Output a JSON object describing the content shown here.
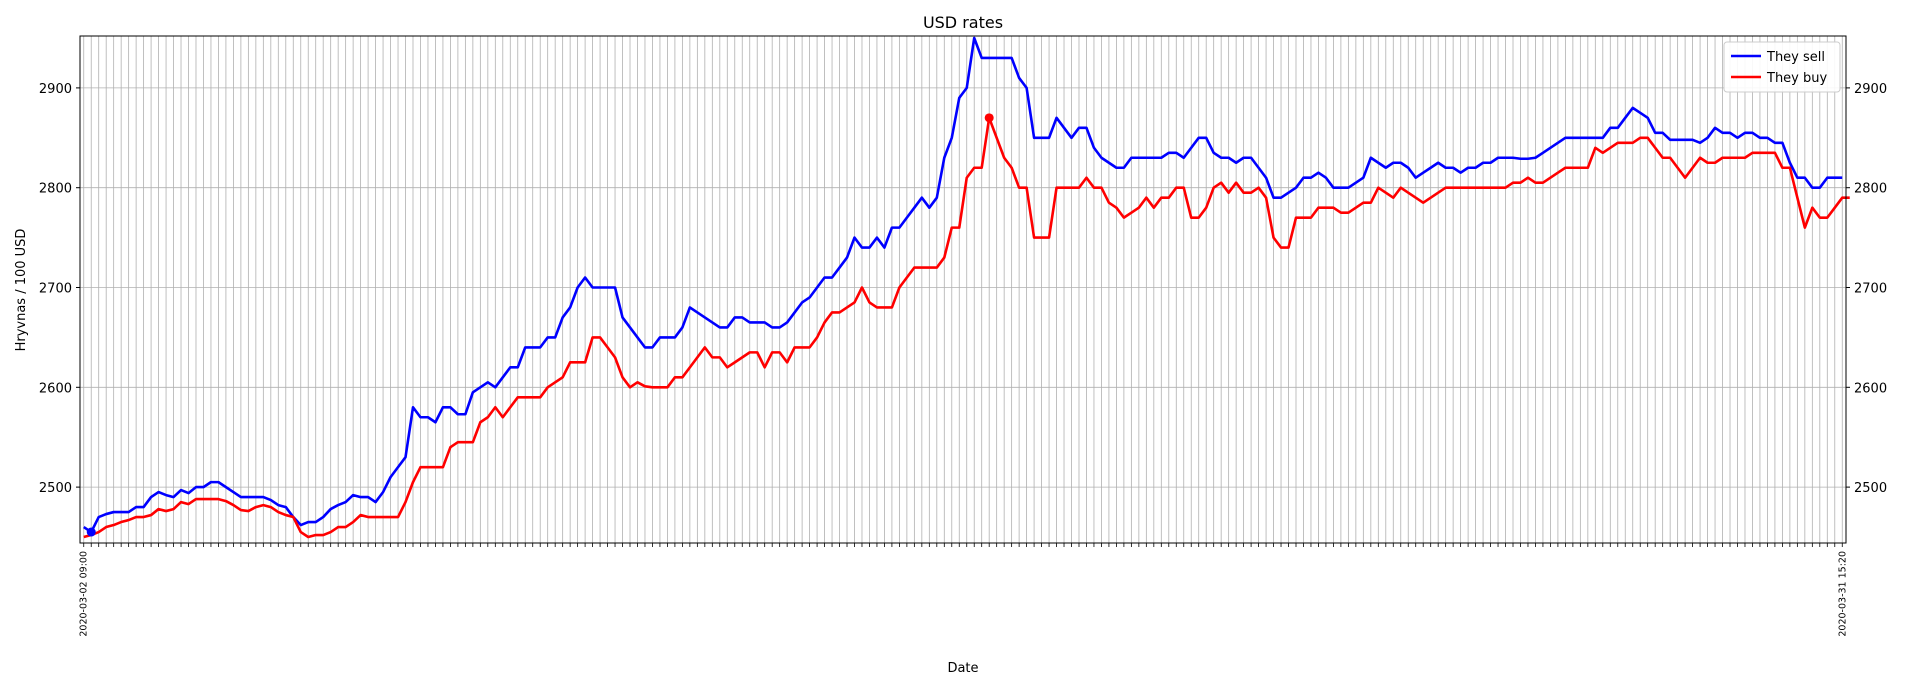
{
  "chart_data": {
    "type": "line",
    "title": "USD rates",
    "xlabel": "Date",
    "ylabel": "Hryvnas / 100 USD",
    "ylim": [
      2444,
      2952
    ],
    "yticks": [
      2500,
      2600,
      2700,
      2800,
      2900
    ],
    "grid": true,
    "legend_position": "top-right",
    "date_range": [
      "2020-03-02 09:00",
      "2020-03-31 15:20"
    ],
    "x_tick_labels_visible": [
      "2020-03-02 09:00",
      "2020-03-31 15:20"
    ],
    "series": [
      {
        "name": "They sell",
        "color": "#0000ff",
        "values": [
          2460,
          2455,
          2470,
          2473,
          2475,
          2475,
          2475,
          2480,
          2480,
          2490,
          2495,
          2492,
          2490,
          2497,
          2494,
          2500,
          2500,
          2505,
          2505,
          2500,
          2495,
          2490,
          2490,
          2490,
          2490,
          2487,
          2482,
          2480,
          2470,
          2462,
          2465,
          2465,
          2470,
          2478,
          2482,
          2485,
          2492,
          2490,
          2490,
          2485,
          2495,
          2510,
          2520,
          2530,
          2580,
          2570,
          2570,
          2565,
          2580,
          2580,
          2573,
          2573,
          2595,
          2600,
          2605,
          2600,
          2610,
          2620,
          2620,
          2640,
          2640,
          2640,
          2650,
          2650,
          2670,
          2680,
          2700,
          2710,
          2700,
          2700,
          2700,
          2700,
          2670,
          2660,
          2650,
          2640,
          2640,
          2650,
          2650,
          2650,
          2660,
          2680,
          2675,
          2670,
          2665,
          2660,
          2660,
          2670,
          2670,
          2665,
          2665,
          2665,
          2660,
          2660,
          2665,
          2675,
          2685,
          2690,
          2700,
          2710,
          2710,
          2720,
          2730,
          2750,
          2740,
          2740,
          2750,
          2740,
          2760,
          2760,
          2770,
          2780,
          2790,
          2780,
          2790,
          2830,
          2850,
          2890,
          2900,
          2950,
          2930,
          2930,
          2930,
          2930,
          2930,
          2910,
          2900,
          2850,
          2850,
          2850,
          2870,
          2860,
          2850,
          2860,
          2860,
          2840,
          2830,
          2825,
          2820,
          2820,
          2830,
          2830,
          2830,
          2830,
          2830,
          2835,
          2835,
          2830,
          2840,
          2850,
          2850,
          2835,
          2830,
          2830,
          2825,
          2830,
          2830,
          2820,
          2810,
          2790,
          2790,
          2795,
          2800,
          2810,
          2810,
          2815,
          2810,
          2800,
          2800,
          2800,
          2805,
          2810,
          2830,
          2825,
          2820,
          2825,
          2825,
          2820,
          2810,
          2815,
          2820,
          2825,
          2820,
          2820,
          2815,
          2820,
          2820,
          2825,
          2825,
          2830,
          2830,
          2830,
          2829,
          2829,
          2830,
          2835,
          2840,
          2845,
          2850,
          2850,
          2850,
          2850,
          2850,
          2850,
          2860,
          2860,
          2870,
          2880,
          2875,
          2870,
          2855,
          2855,
          2848,
          2848,
          2848,
          2848,
          2845,
          2850,
          2860,
          2855,
          2855,
          2850,
          2855,
          2855,
          2850,
          2850,
          2845,
          2845,
          2825,
          2810,
          2810,
          2800,
          2800,
          2810,
          2810,
          2810
        ]
      },
      {
        "name": "They buy",
        "color": "#ff0000",
        "values": [
          2450,
          2452,
          2455,
          2460,
          2462,
          2465,
          2467,
          2470,
          2470,
          2472,
          2478,
          2476,
          2478,
          2485,
          2483,
          2488,
          2488,
          2488,
          2488,
          2486,
          2482,
          2477,
          2476,
          2480,
          2482,
          2480,
          2475,
          2472,
          2470,
          2455,
          2450,
          2452,
          2452,
          2455,
          2460,
          2460,
          2465,
          2472,
          2470,
          2470,
          2470,
          2470,
          2470,
          2485,
          2505,
          2520,
          2520,
          2520,
          2520,
          2540,
          2545,
          2545,
          2545,
          2565,
          2570,
          2580,
          2570,
          2580,
          2590,
          2590,
          2590,
          2590,
          2600,
          2605,
          2610,
          2625,
          2625,
          2625,
          2650,
          2650,
          2640,
          2630,
          2610,
          2600,
          2605,
          2601,
          2600,
          2600,
          2600,
          2610,
          2610,
          2620,
          2630,
          2640,
          2630,
          2630,
          2620,
          2625,
          2630,
          2635,
          2635,
          2620,
          2635,
          2635,
          2625,
          2640,
          2640,
          2640,
          2650,
          2665,
          2675,
          2675,
          2680,
          2685,
          2700,
          2685,
          2680,
          2680,
          2680,
          2700,
          2710,
          2720,
          2720,
          2720,
          2720,
          2730,
          2760,
          2760,
          2810,
          2820,
          2820,
          2870,
          2850,
          2830,
          2820,
          2800,
          2800,
          2750,
          2750,
          2750,
          2800,
          2800,
          2800,
          2800,
          2810,
          2800,
          2800,
          2785,
          2780,
          2770,
          2775,
          2780,
          2790,
          2780,
          2790,
          2790,
          2800,
          2800,
          2770,
          2770,
          2780,
          2800,
          2805,
          2795,
          2805,
          2795,
          2795,
          2800,
          2790,
          2750,
          2740,
          2740,
          2770,
          2770,
          2770,
          2780,
          2780,
          2780,
          2775,
          2775,
          2780,
          2785,
          2785,
          2800,
          2795,
          2790,
          2800,
          2795,
          2790,
          2785,
          2790,
          2795,
          2800,
          2800,
          2800,
          2800,
          2800,
          2800,
          2800,
          2800,
          2800,
          2805,
          2805,
          2810,
          2805,
          2805,
          2810,
          2815,
          2820,
          2820,
          2820,
          2820,
          2840,
          2835,
          2840,
          2845,
          2845,
          2845,
          2850,
          2850,
          2840,
          2830,
          2830,
          2820,
          2810,
          2820,
          2830,
          2825,
          2825,
          2830,
          2830,
          2830,
          2830,
          2835,
          2835,
          2835,
          2835,
          2820,
          2820,
          2790,
          2760,
          2780,
          2770,
          2770,
          2780,
          2790,
          2790
        ]
      }
    ],
    "markers": [
      {
        "series": "They sell",
        "index": 1,
        "value": 2455
      },
      {
        "series": "They buy",
        "index": 121,
        "value": 2870
      }
    ]
  }
}
